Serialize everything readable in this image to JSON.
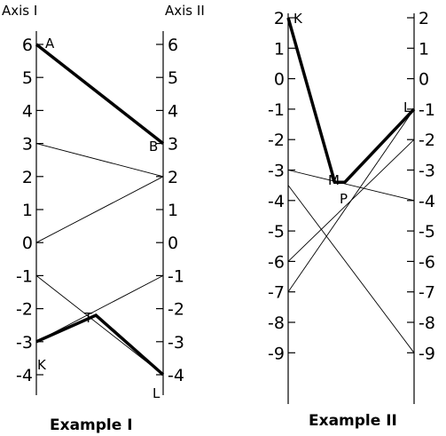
{
  "example1": {
    "caption": "Example I",
    "axis1_title": "Axis I",
    "axis2_title": "Axis II",
    "ticks": [
      6,
      5,
      4,
      3,
      2,
      1,
      0,
      -1,
      -2,
      -3,
      -4
    ],
    "tick_labels": [
      "6",
      "5",
      "4",
      "3",
      "2",
      "1",
      "0",
      "-1",
      "-2",
      "-3",
      "-4"
    ],
    "thin_lines": [
      [
        3,
        2
      ],
      [
        0,
        2
      ],
      [
        -1,
        -4
      ],
      [
        -3,
        -1
      ]
    ],
    "thick_paths": [
      [
        [
          0,
          6
        ],
        [
          1,
          3
        ]
      ],
      [
        [
          0,
          -3
        ],
        [
          0.47,
          -2.2
        ],
        [
          1,
          -4
        ]
      ]
    ],
    "labels": {
      "A": "A",
      "B": "B",
      "T": "T",
      "K": "K",
      "L": "L"
    }
  },
  "example2": {
    "caption": "Example II",
    "ticks": [
      2,
      1,
      0,
      -1,
      -2,
      -3,
      -4,
      -5,
      -6,
      -7,
      -8,
      -9
    ],
    "tick_labels": [
      "2",
      "1",
      "0",
      "-1",
      "-2",
      "-3",
      "-4",
      "-5",
      "-6",
      "-7",
      "-8",
      "-9"
    ],
    "thin_lines": [
      [
        -3,
        -4
      ],
      [
        -6,
        -2
      ],
      [
        -7,
        -1
      ],
      [
        -3.5,
        -9
      ]
    ],
    "thick_paths": [
      [
        [
          0,
          2
        ],
        [
          0.37,
          -3.4
        ],
        [
          0.45,
          -3.4
        ],
        [
          1,
          -1
        ]
      ]
    ],
    "labels": {
      "K": "K",
      "L": "L",
      "M": "M",
      "P": "P"
    }
  }
}
